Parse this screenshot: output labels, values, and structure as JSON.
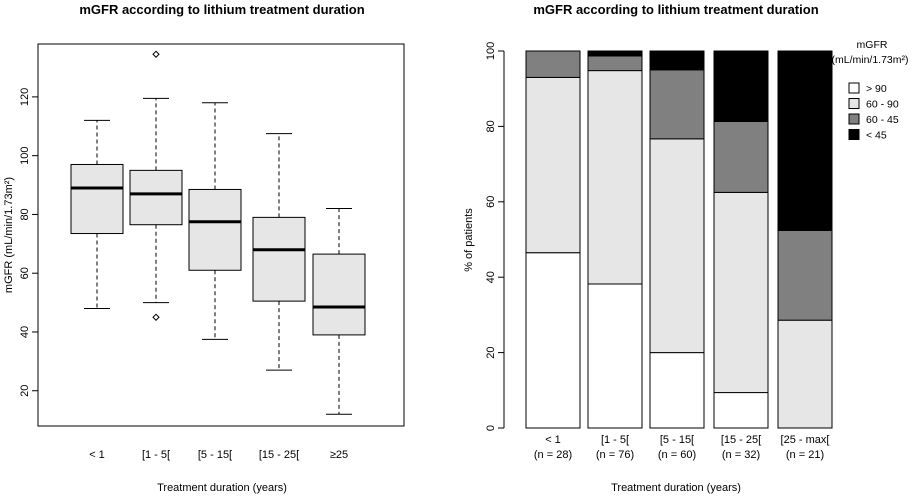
{
  "chart_data": [
    {
      "type": "boxplot",
      "title": "mGFR according to lithium treatment duration",
      "xlabel": "Treatment duration (years)",
      "ylabel": "mGFR (mL/min/1.73m²)",
      "ylim": [
        8,
        138
      ],
      "yticks": [
        20,
        40,
        60,
        80,
        100,
        120
      ],
      "categories": [
        "< 1",
        "[1 - 5[",
        "[5 - 15[",
        "[15 - 25[",
        "≥25"
      ],
      "boxes": [
        {
          "min": 48,
          "q1": 73.5,
          "median": 89,
          "q3": 97,
          "max": 112,
          "outliers": []
        },
        {
          "min": 50,
          "q1": 76.5,
          "median": 87,
          "q3": 95,
          "max": 119.5,
          "outliers": [
            134.5,
            45
          ]
        },
        {
          "min": 37.5,
          "q1": 61,
          "median": 77.5,
          "q3": 88.5,
          "max": 118,
          "outliers": []
        },
        {
          "min": 27,
          "q1": 50.5,
          "median": 68,
          "q3": 79,
          "max": 107.5,
          "outliers": []
        },
        {
          "min": 12,
          "q1": 39,
          "median": 48.5,
          "q3": 66.5,
          "max": 82,
          "outliers": []
        }
      ]
    },
    {
      "type": "stacked-bar",
      "title": "mGFR according to lithium treatment duration",
      "xlabel": "Treatment duration (years)",
      "ylabel": "% of patients",
      "ylim": [
        0,
        100
      ],
      "yticks": [
        0,
        20,
        40,
        60,
        80,
        100
      ],
      "categories": [
        "< 1",
        "[1 - 5[",
        "[5 - 15[",
        "[15 - 25[",
        "[25 - max["
      ],
      "sublabels": [
        "(n = 28)",
        "(n = 76)",
        "(n = 60)",
        "(n = 32)",
        "(n = 21)"
      ],
      "series": [
        {
          "name": "> 90",
          "color": "#ffffff",
          "values": [
            46.5,
            38.2,
            20.0,
            9.4,
            0.0
          ]
        },
        {
          "name": "60 - 90",
          "color": "#e6e6e6",
          "values": [
            46.5,
            56.6,
            56.7,
            53.1,
            28.6
          ]
        },
        {
          "name": "60 - 45",
          "color": "#808080",
          "values": [
            7.0,
            3.9,
            18.3,
            18.8,
            23.8
          ]
        },
        {
          "name": "< 45",
          "color": "#000000",
          "values": [
            0.0,
            1.3,
            5.0,
            18.7,
            47.6
          ]
        }
      ],
      "legend": {
        "title_line1": "mGFR",
        "title_line2": "(mL/min/1.73m²)",
        "position": "top-right"
      }
    }
  ]
}
